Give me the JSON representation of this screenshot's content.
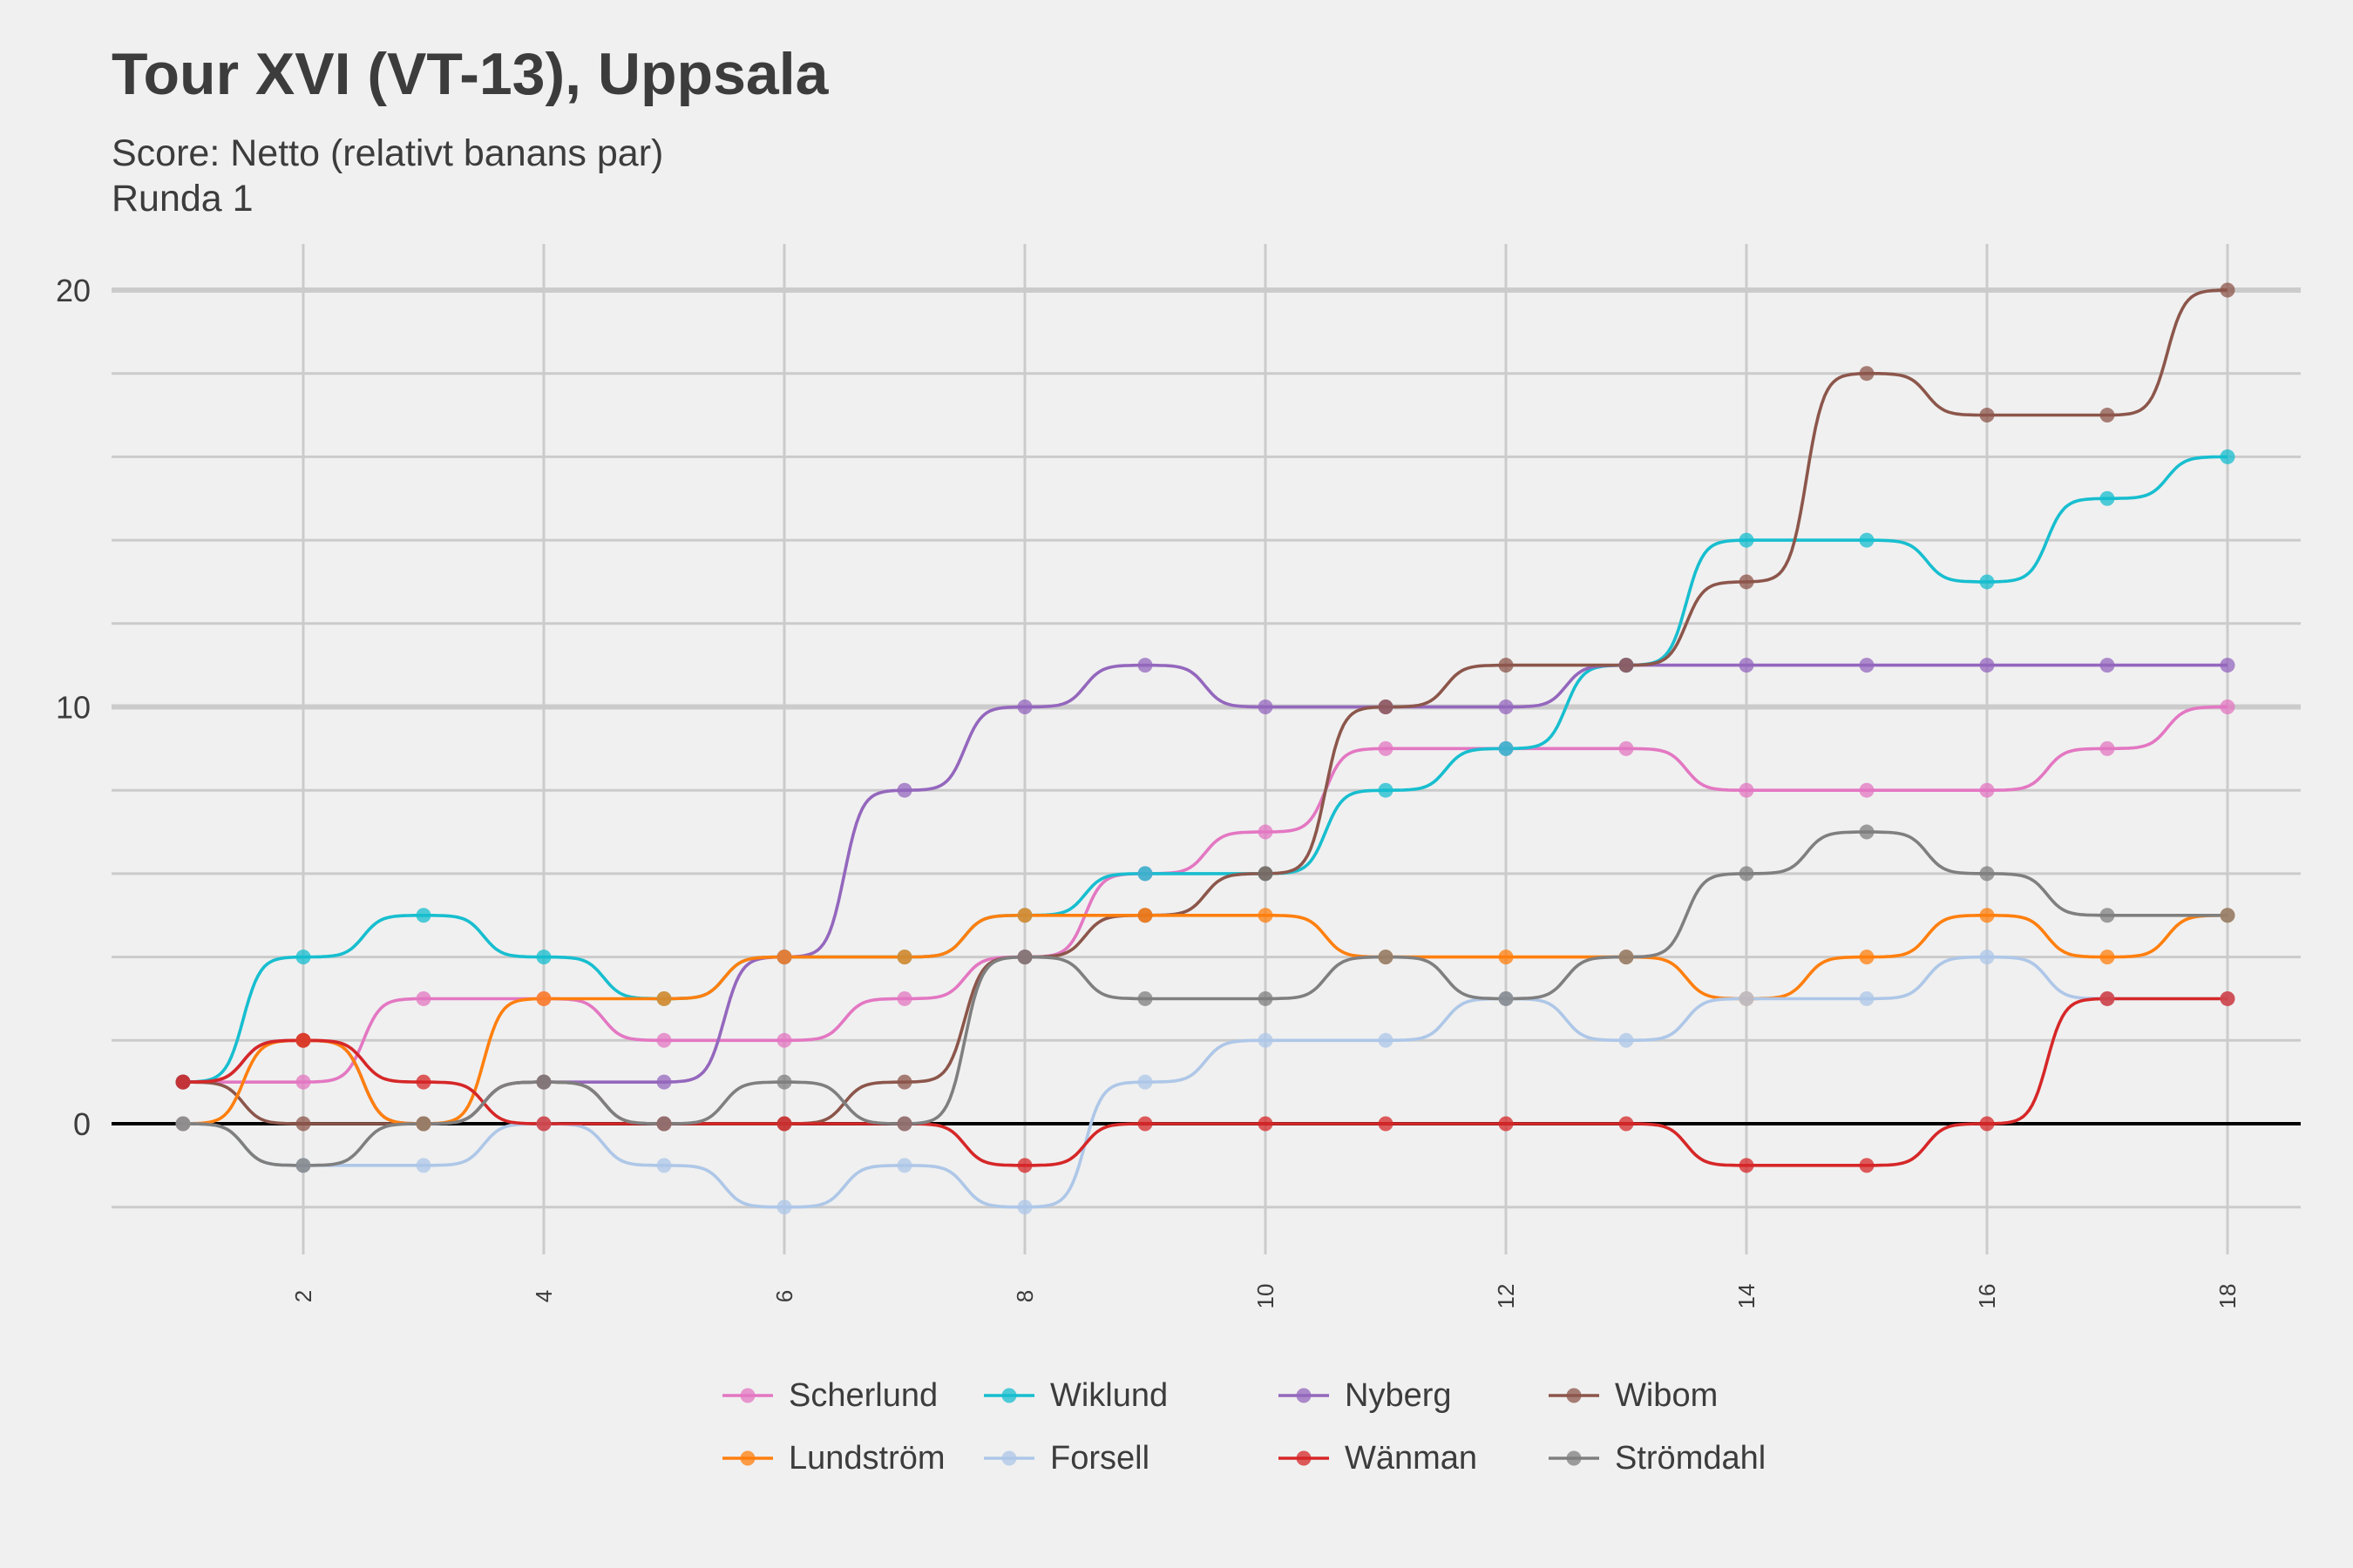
{
  "chart_data": {
    "type": "line",
    "title": "Tour XVI (VT-13), Uppsala",
    "subtitle": [
      "Score: Netto (relativt banans par)",
      "Runda 1"
    ],
    "xlabel": "",
    "ylabel": "",
    "x": [
      1,
      2,
      3,
      4,
      5,
      6,
      7,
      8,
      9,
      10,
      11,
      12,
      13,
      14,
      15,
      16,
      17,
      18
    ],
    "xticks": [
      2,
      4,
      6,
      8,
      10,
      12,
      14,
      16,
      18
    ],
    "yticks": [
      0,
      10,
      20
    ],
    "ylim": [
      -3,
      20.5
    ],
    "xlim": [
      0.4,
      18.6
    ],
    "grid": true,
    "legend_position": "bottom",
    "series": [
      {
        "name": "Scherlund",
        "color": "#e377c2",
        "values": [
          1,
          1,
          3,
          3,
          2,
          2,
          3,
          4,
          6,
          7,
          9,
          9,
          9,
          8,
          8,
          8,
          9,
          10
        ]
      },
      {
        "name": "Wiklund",
        "color": "#17becf",
        "values": [
          1,
          4,
          5,
          4,
          3,
          4,
          4,
          5,
          6,
          6,
          8,
          9,
          11,
          14,
          14,
          13,
          15,
          16
        ]
      },
      {
        "name": "Nyberg",
        "color": "#9467bd",
        "values": [
          1,
          2,
          0,
          1,
          1,
          4,
          8,
          10,
          11,
          10,
          10,
          10,
          11,
          11,
          11,
          11,
          11,
          11
        ]
      },
      {
        "name": "Wibom",
        "color": "#8c564b",
        "values": [
          1,
          0,
          0,
          1,
          0,
          0,
          1,
          4,
          5,
          6,
          10,
          11,
          11,
          13,
          18,
          17,
          17,
          20
        ]
      },
      {
        "name": "Lundström",
        "color": "#ff7f0e",
        "values": [
          0,
          2,
          0,
          3,
          3,
          4,
          4,
          5,
          5,
          5,
          4,
          4,
          4,
          3,
          4,
          5,
          4,
          5
        ]
      },
      {
        "name": "Forsell",
        "color": "#aec7e8",
        "values": [
          0,
          -1,
          -1,
          0,
          -1,
          -2,
          -1,
          -2,
          1,
          2,
          2,
          3,
          2,
          3,
          3,
          4,
          3,
          3
        ]
      },
      {
        "name": "Wänman",
        "color": "#d62728",
        "values": [
          1,
          2,
          1,
          0,
          0,
          0,
          0,
          -1,
          0,
          0,
          0,
          0,
          0,
          -1,
          -1,
          0,
          3,
          3
        ]
      },
      {
        "name": "Strömdahl",
        "color": "#7f7f7f",
        "values": [
          0,
          -1,
          0,
          1,
          0,
          1,
          0,
          4,
          3,
          3,
          4,
          3,
          4,
          6,
          7,
          6,
          5,
          5
        ]
      }
    ]
  }
}
